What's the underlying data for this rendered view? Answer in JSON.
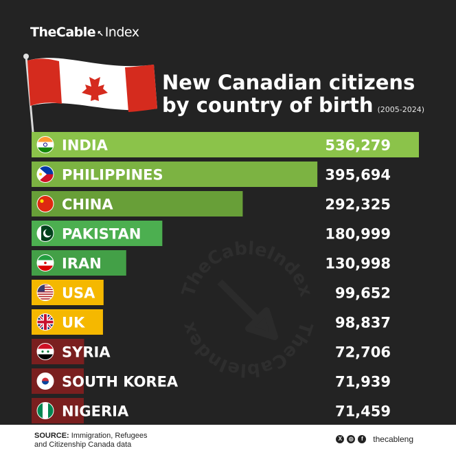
{
  "brand": {
    "name": "TheCable",
    "separator": "↖",
    "suffix": "Index"
  },
  "title": {
    "line1": "New Canadian citizens",
    "line2": "by country of birth",
    "period": "(2005-2024)"
  },
  "chart_data": {
    "type": "bar",
    "orientation": "horizontal",
    "title": "New Canadian citizens by country of birth",
    "subtitle": "(2005-2024)",
    "categories": [
      "INDIA",
      "PHILIPPINES",
      "CHINA",
      "PAKISTAN",
      "IRAN",
      "USA",
      "UK",
      "SYRIA",
      "SOUTH KOREA",
      "NIGERIA"
    ],
    "values": [
      536279,
      395694,
      292325,
      180999,
      130998,
      99652,
      98837,
      72706,
      71939,
      71459
    ],
    "value_labels": [
      "536,279",
      "395,694",
      "292,325",
      "180,999",
      "130,998",
      "99,652",
      "98,837",
      "72,706",
      "71,939",
      "71,459"
    ],
    "bar_colors": [
      "#8bc34a",
      "#7cb342",
      "#689f38",
      "#4caf50",
      "#43a047",
      "#f5b800",
      "#f5b800",
      "#7a1f1f",
      "#7a1f1f",
      "#7a1f1f"
    ],
    "flag_icons": [
      "india-flag-icon",
      "philippines-flag-icon",
      "china-flag-icon",
      "pakistan-flag-icon",
      "iran-flag-icon",
      "usa-flag-icon",
      "uk-flag-icon",
      "syria-flag-icon",
      "south-korea-flag-icon",
      "nigeria-flag-icon"
    ],
    "legend": "none",
    "grid": false
  },
  "watermark": {
    "top_text": "TheCableIndex",
    "bottom_text": "TheCableIndex"
  },
  "footer": {
    "source_label": "SOURCE:",
    "source_text": "Immigration, Refugees",
    "source_text2": "and Citizenship Canada data",
    "handle": "thecableng",
    "social_icons": [
      "x-icon",
      "instagram-icon",
      "facebook-icon"
    ]
  }
}
